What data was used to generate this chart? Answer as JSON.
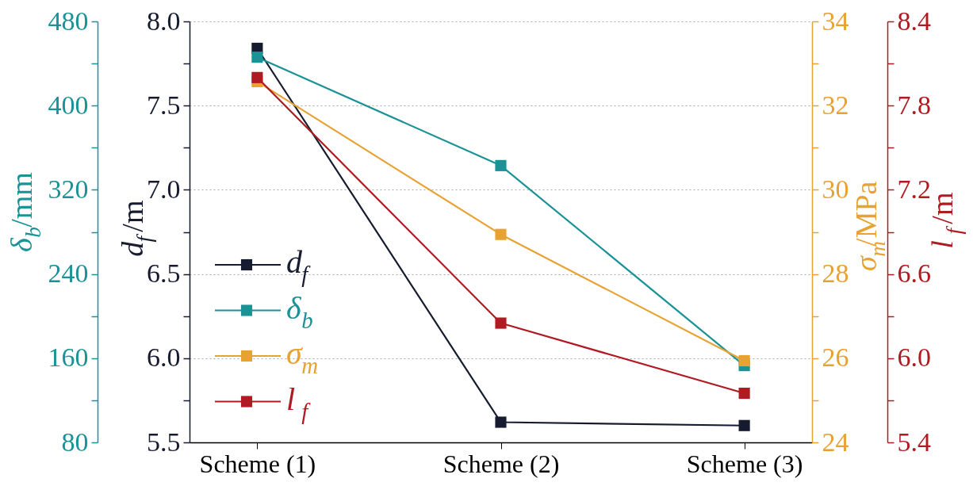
{
  "chart_data": [
    {
      "type": "line",
      "categories": [
        "Scheme (1)",
        "Scheme (2)",
        "Scheme (3)"
      ],
      "ylabel": "d$_{f}$/m",
      "ylim": [
        5.5,
        8.0
      ],
      "yticks": [
        5.5,
        {
          "value": 5.75,
          "label": null
        },
        {
          "value": 6,
          "label": "6.0"
        },
        {
          "value": 6.25,
          "label": null
        },
        6.5,
        {
          "value": 6.75,
          "label": null
        },
        {
          "value": 7,
          "label": "7.0"
        },
        {
          "value": 7.25,
          "label": null
        },
        7.5,
        {
          "value": 7.75,
          "label": null
        },
        {
          "value": 8,
          "label": "8.0"
        }
      ],
      "y2label": "σ$_{m}$/MPa",
      "y2lim": [
        24,
        34
      ],
      "y2ticks": [
        24,
        {
          "value": 25,
          "label": null
        },
        26,
        {
          "value": 27,
          "label": null
        },
        28,
        {
          "value": 29,
          "label": null
        },
        30,
        {
          "value": 31,
          "label": null
        },
        32,
        {
          "value": 33,
          "label": null
        },
        34
      ],
      "series": [
        {
          "name": "d$_{f}$",
          "color": "#161b30",
          "values": [
            7.84,
            5.62,
            5.6
          ]
        },
        {
          "name": "σ$_{m}$",
          "color": "#e8a232",
          "axis": "y2",
          "values": [
            32.57,
            28.94,
            25.94
          ]
        }
      ],
      "marker": "square",
      "line_style": "solid",
      "grid": "y",
      "legend": "left"
    },
    {
      "type": "line",
      "categories": [
        "Scheme (1)",
        "Scheme (2)",
        "Scheme (3)"
      ],
      "ylabel": "δ$_{b}$/mm",
      "ylim": [
        80,
        480
      ],
      "yticks": [
        80,
        {
          "value": 120,
          "label": null
        },
        160,
        {
          "value": 200,
          "label": null
        },
        240,
        {
          "value": 280,
          "label": null
        },
        320,
        {
          "value": 360,
          "label": null
        },
        400,
        {
          "value": 440,
          "label": null
        },
        480
      ],
      "y2label": "l$_{f}$/m",
      "y2lim": [
        5.4,
        8.4
      ],
      "y2ticks": [
        5.4,
        {
          "value": 5.7,
          "label": null
        },
        {
          "value": 6,
          "label": "6.0"
        },
        {
          "value": 6.3,
          "label": null
        },
        6.6,
        {
          "value": 6.9,
          "label": null
        },
        7.2,
        {
          "value": 7.5,
          "label": null
        },
        7.8,
        {
          "value": 8.1,
          "label": null
        },
        8.4
      ],
      "series": [
        {
          "name": "δ$_{b}$",
          "color": "#1a9296",
          "values": [
            446,
            343,
            153
          ]
        },
        {
          "name": "l$_{f}$",
          "color": "#b01a22",
          "axis": "y2",
          "values": [
            8.0,
            6.25,
            5.75
          ]
        }
      ],
      "marker": "square",
      "line_style": "solid",
      "legend": "left",
      "tick_labels": "y"
    }
  ]
}
